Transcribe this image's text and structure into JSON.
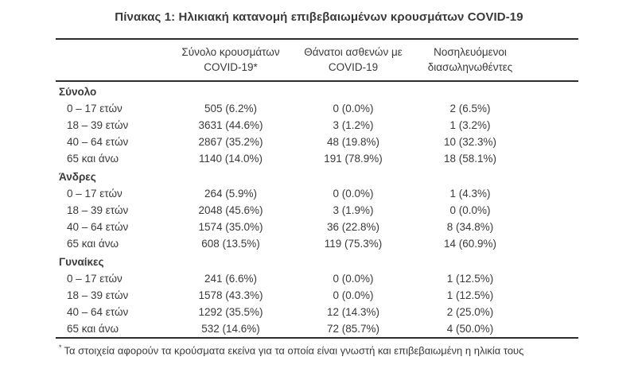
{
  "page": {
    "title": "Πίνακας 1: Ηλικιακή κατανομή επιβεβαιωμένων κρουσμάτων COVID-19"
  },
  "table": {
    "headers": {
      "cases_line1": "Σύνολο κρουσμάτων",
      "cases_line2": "COVID-19*",
      "deaths_line1": "Θάνατοι ασθενών με",
      "deaths_line2": "COVID-19",
      "intubated_line1": "Νοσηλευόμενοι",
      "intubated_line2": "διασωληνωθέντες"
    },
    "sections": [
      {
        "label": "Σύνολο",
        "rows": [
          {
            "label": "0 – 17 ετών",
            "cases": "505 (6.2%)",
            "deaths": "0 (0.0%)",
            "intubated": "2 (6.5%)"
          },
          {
            "label": "18 – 39 ετών",
            "cases": "3631 (44.6%)",
            "deaths": "3 (1.2%)",
            "intubated": "1 (3.2%)"
          },
          {
            "label": "40 – 64 ετών",
            "cases": "2867 (35.2%)",
            "deaths": "48 (19.8%)",
            "intubated": "10 (32.3%)"
          },
          {
            "label": "65 και άνω",
            "cases": "1140 (14.0%)",
            "deaths": "191 (78.9%)",
            "intubated": "18 (58.1%)"
          }
        ]
      },
      {
        "label": "Άνδρες",
        "rows": [
          {
            "label": "0 – 17 ετών",
            "cases": "264 (5.9%)",
            "deaths": "0 (0.0%)",
            "intubated": "1 (4.3%)"
          },
          {
            "label": "18 – 39 ετών",
            "cases": "2048 (45.6%)",
            "deaths": "3 (1.9%)",
            "intubated": "0 (0.0%)"
          },
          {
            "label": "40 – 64 ετών",
            "cases": "1574 (35.0%)",
            "deaths": "36 (22.8%)",
            "intubated": "8 (34.8%)"
          },
          {
            "label": "65 και άνω",
            "cases": "608 (13.5%)",
            "deaths": "119 (75.3%)",
            "intubated": "14 (60.9%)"
          }
        ]
      },
      {
        "label": "Γυναίκες",
        "rows": [
          {
            "label": "0 – 17 ετών",
            "cases": "241 (6.6%)",
            "deaths": "0 (0.0%)",
            "intubated": "1 (12.5%)"
          },
          {
            "label": "18 – 39 ετών",
            "cases": "1578 (43.3%)",
            "deaths": "0 (0.0%)",
            "intubated": "1 (12.5%)"
          },
          {
            "label": "40 – 64 ετών",
            "cases": "1292 (35.5%)",
            "deaths": "12 (14.3%)",
            "intubated": "2 (25.0%)"
          },
          {
            "label": "65 και άνω",
            "cases": "532 (14.6%)",
            "deaths": "72 (85.7%)",
            "intubated": "4 (50.0%)"
          }
        ]
      }
    ],
    "footnote_marker": "*",
    "footnote_text": "Τα στοιχεία αφορούν τα κρούσματα εκείνα για τα οποία είναι γνωστή και επιβεβαιωμένη η ηλικία τους"
  },
  "colors": {
    "text": "#3a3a3a",
    "rule": "#2d2d2d",
    "background": "#ffffff"
  }
}
